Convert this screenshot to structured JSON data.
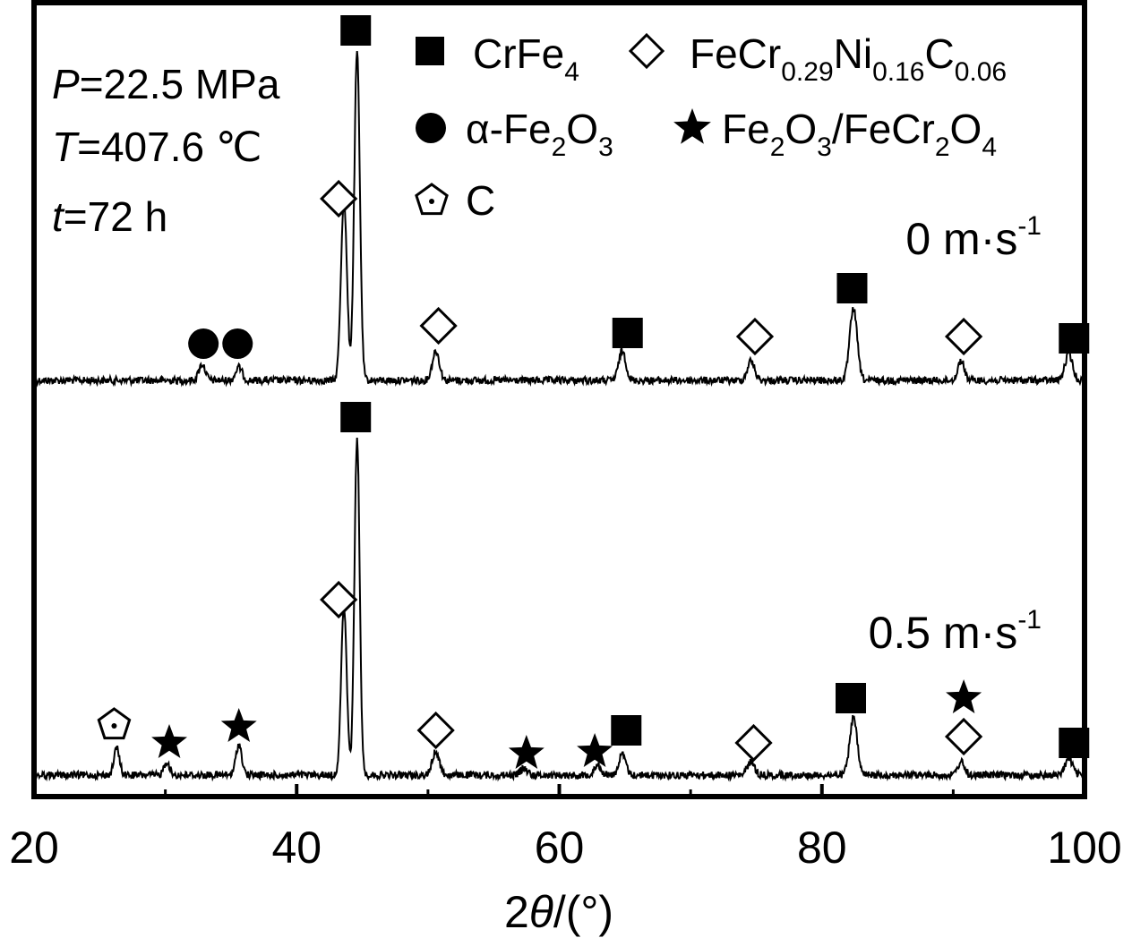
{
  "chart_data": {
    "type": "line",
    "xlabel_prefix": "2",
    "xlabel_var": "θ",
    "xlabel_suffix": "/(°)",
    "xlim": [
      20,
      100
    ],
    "xticks": [
      "20",
      "40",
      "60",
      "80",
      "100"
    ],
    "conditions": {
      "p_var": "P",
      "p_val": "=22.5 MPa",
      "t_var": "T",
      "t_val": "=407.6 ℃",
      "time_var": "t",
      "time_val": "=72 h"
    },
    "legend": {
      "crfe4": {
        "main": "CrFe",
        "sub": "4"
      },
      "fecrnic": {
        "p1": "FeCr",
        "s1": "0.29",
        "p2": "Ni",
        "s2": "0.16",
        "p3": "C",
        "s3": "0.06"
      },
      "fe2o3": {
        "p1": "α-Fe",
        "s1": "2",
        "p2": "O",
        "s2": "3"
      },
      "fe2o3_fecr2o4": {
        "p1": "Fe",
        "s1": "2",
        "p2": "O",
        "s2": "3",
        "p3": "/FeCr",
        "s3": "2",
        "p4": "O",
        "s4": "4"
      },
      "c": {
        "main": "C"
      }
    },
    "series": [
      {
        "label_main": "0 m·s",
        "label_sup": "-1",
        "peaks": [
          {
            "x": 32.8,
            "h": 0.05,
            "w": 0.35
          },
          {
            "x": 35.6,
            "h": 0.04,
            "w": 0.35
          },
          {
            "x": 43.6,
            "h": 0.55,
            "w": 0.32
          },
          {
            "x": 44.6,
            "h": 1.0,
            "w": 0.3
          },
          {
            "x": 50.6,
            "h": 0.09,
            "w": 0.38
          },
          {
            "x": 64.8,
            "h": 0.09,
            "w": 0.38
          },
          {
            "x": 74.6,
            "h": 0.06,
            "w": 0.38
          },
          {
            "x": 82.4,
            "h": 0.22,
            "w": 0.4
          },
          {
            "x": 90.6,
            "h": 0.06,
            "w": 0.35
          },
          {
            "x": 98.8,
            "h": 0.08,
            "w": 0.4
          }
        ],
        "markers": [
          {
            "x": 44.5,
            "type": "square"
          },
          {
            "x": 43.2,
            "type": "diamond"
          },
          {
            "x": 32.9,
            "type": "circle"
          },
          {
            "x": 35.5,
            "type": "circle"
          },
          {
            "x": 50.8,
            "type": "diamond"
          },
          {
            "x": 65.2,
            "type": "square"
          },
          {
            "x": 74.9,
            "type": "diamond"
          },
          {
            "x": 82.3,
            "type": "square"
          },
          {
            "x": 90.8,
            "type": "diamond"
          },
          {
            "x": 99.2,
            "type": "square"
          }
        ]
      },
      {
        "label_main": "0.5 m·s",
        "label_sup": "-1",
        "peaks": [
          {
            "x": 26.3,
            "h": 0.08,
            "w": 0.3
          },
          {
            "x": 30.1,
            "h": 0.04,
            "w": 0.3
          },
          {
            "x": 35.6,
            "h": 0.09,
            "w": 0.32
          },
          {
            "x": 43.6,
            "h": 0.5,
            "w": 0.3
          },
          {
            "x": 44.6,
            "h": 1.0,
            "w": 0.28
          },
          {
            "x": 50.6,
            "h": 0.07,
            "w": 0.38
          },
          {
            "x": 57.3,
            "h": 0.02,
            "w": 0.38
          },
          {
            "x": 62.9,
            "h": 0.03,
            "w": 0.38
          },
          {
            "x": 64.8,
            "h": 0.06,
            "w": 0.38
          },
          {
            "x": 74.6,
            "h": 0.04,
            "w": 0.38
          },
          {
            "x": 82.4,
            "h": 0.17,
            "w": 0.4
          },
          {
            "x": 90.6,
            "h": 0.04,
            "w": 0.35
          },
          {
            "x": 98.8,
            "h": 0.05,
            "w": 0.4
          }
        ],
        "markers": [
          {
            "x": 44.5,
            "type": "square"
          },
          {
            "x": 43.2,
            "type": "diamond"
          },
          {
            "x": 26.1,
            "type": "pentagon"
          },
          {
            "x": 30.3,
            "type": "star"
          },
          {
            "x": 35.6,
            "type": "star"
          },
          {
            "x": 50.6,
            "type": "diamond"
          },
          {
            "x": 57.5,
            "type": "star"
          },
          {
            "x": 62.7,
            "type": "star"
          },
          {
            "x": 65.1,
            "type": "square"
          },
          {
            "x": 74.8,
            "type": "diamond"
          },
          {
            "x": 82.2,
            "type": "square"
          },
          {
            "x": 90.8,
            "type": "star"
          },
          {
            "x": 90.8,
            "type": "diamond"
          },
          {
            "x": 99.2,
            "type": "square"
          }
        ]
      }
    ]
  }
}
